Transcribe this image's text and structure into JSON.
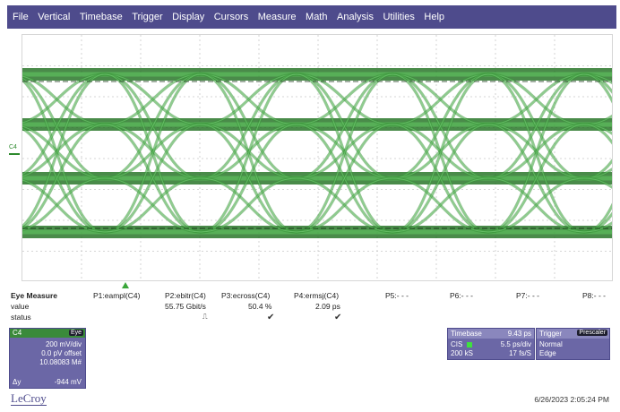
{
  "menu": [
    "File",
    "Vertical",
    "Timebase",
    "Trigger",
    "Display",
    "Cursors",
    "Measure",
    "Math",
    "Analysis",
    "Utilities",
    "Help"
  ],
  "channel_label": "C4",
  "measurements": {
    "title": "Eye Measure",
    "row_labels": {
      "value": "value",
      "status": "status"
    },
    "params": [
      {
        "name": "P1:eampl(C4)",
        "value": "",
        "status": ""
      },
      {
        "name": "P2:ebitr(C4)",
        "value": "55.75 Gbit/s",
        "status": "pulse"
      },
      {
        "name": "P3:ecross(C4)",
        "value": "50.4 %",
        "status": "check"
      },
      {
        "name": "P4:ermsj(C4)",
        "value": "2.09 ps",
        "status": "check"
      },
      {
        "name": "P5:- - -",
        "value": "",
        "status": ""
      },
      {
        "name": "P6:- - -",
        "value": "",
        "status": ""
      },
      {
        "name": "P7:- - -",
        "value": "",
        "status": ""
      },
      {
        "name": "P8:- - -",
        "value": "",
        "status": ""
      }
    ]
  },
  "c4_box": {
    "name": "C4",
    "badge": "Eye",
    "vdiv": "200 mV/div",
    "offset": "0.0 pV offset",
    "count": "10.08083 M#",
    "dy_label": "Δy",
    "dy_value": "-944 mV"
  },
  "timebase": {
    "title": "Timebase",
    "title_value": "9.43 ps",
    "mode": "CIS",
    "tdiv": "5.5 ps/div",
    "samples": "200 kS",
    "rate": "17 fs/S"
  },
  "trigger": {
    "title": "Trigger",
    "badge": "Prescaler",
    "mode": "Normal",
    "type": "Edge"
  },
  "logo": "LeCroy",
  "datetime": "6/26/2023 2:05:24 PM",
  "colors": {
    "menu_bg": "#4e4b8c",
    "trace": "#3da83d",
    "panel": "#6b67a6"
  }
}
